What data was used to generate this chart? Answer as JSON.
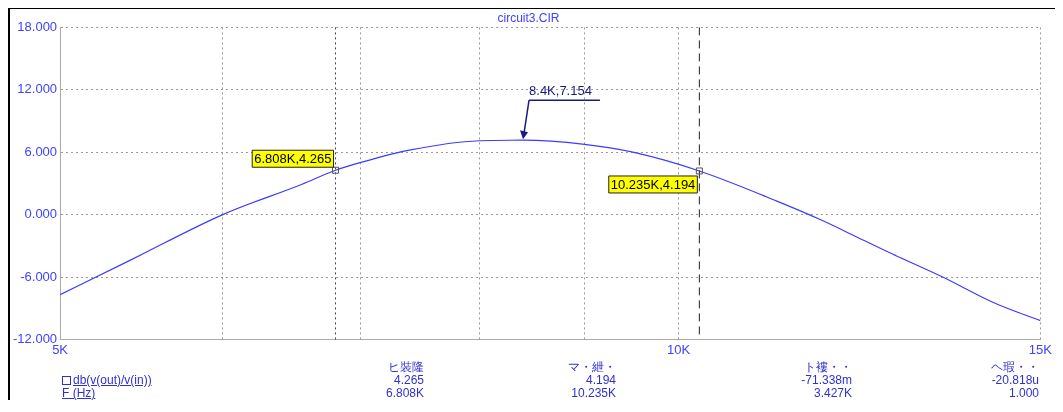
{
  "chart_data": {
    "type": "line",
    "title": "circuit3.CIR",
    "x": [
      5000,
      5407,
      6000,
      6553,
      6808,
      7000,
      7395,
      8000,
      8400,
      9000,
      9500,
      10235,
      11164,
      11727,
      12195,
      12678,
      13443,
      14248,
      15000
    ],
    "series": [
      {
        "color": "#3c3cff",
        "values": [
          -7.7,
          -4.4,
          0.0,
          2.9,
          4.265,
          5.0,
          6.2,
          7.1,
          7.154,
          6.75,
          6.0,
          4.194,
          1.3,
          -0.5,
          -2.1,
          -3.7,
          -6.0,
          -8.5,
          -10.2
        ]
      }
    ],
    "log": "x",
    "xlim": [
      5000,
      15000
    ],
    "xticks": [
      {
        "value": 5000,
        "label": "5K"
      },
      {
        "value": 6000,
        "label": null
      },
      {
        "value": 7000,
        "label": null
      },
      {
        "value": 8000,
        "label": null
      },
      {
        "value": 9000,
        "label": null
      },
      {
        "value": 10000,
        "label": "10K"
      },
      {
        "value": 15000,
        "label": "15K"
      }
    ],
    "ylim": [
      -12,
      18
    ],
    "yticks": [
      {
        "value": -12,
        "label": "-12.000"
      },
      {
        "value": -6,
        "label": "-6.000"
      },
      {
        "value": 0,
        "label": "0.000"
      },
      {
        "value": 6,
        "label": "6.000"
      },
      {
        "value": 12,
        "label": "12.000"
      },
      {
        "value": 18,
        "label": "18.000"
      }
    ],
    "grid": true,
    "legend": false,
    "marker": "none",
    "line_style": "solid",
    "ref_lines": [
      {
        "axis": "x",
        "value": 6808,
        "color": "#404040",
        "line_style": "dotted"
      },
      {
        "axis": "x",
        "value": 10235,
        "color": "#202020",
        "line_style": "dashed"
      }
    ],
    "annotations": [
      {
        "text": "6.808K,4.265",
        "x": 6808,
        "y": 4.265
      },
      {
        "text": "10.235K,4.194",
        "x": 10235,
        "y": 4.194
      },
      {
        "text": "8.4K,7.154",
        "x": 8400,
        "y": 7.154
      },
      "ヒ裝隆",
      "マ・紲・",
      "ト褸・・",
      "ヘ瑕・・",
      "db(v(out)/v(in))",
      "4.265",
      "4.194",
      "-71.338m",
      "-20.818u",
      "F (Hz)",
      "6.808K",
      "10.235K",
      "3.427K",
      "1.000"
    ]
  }
}
